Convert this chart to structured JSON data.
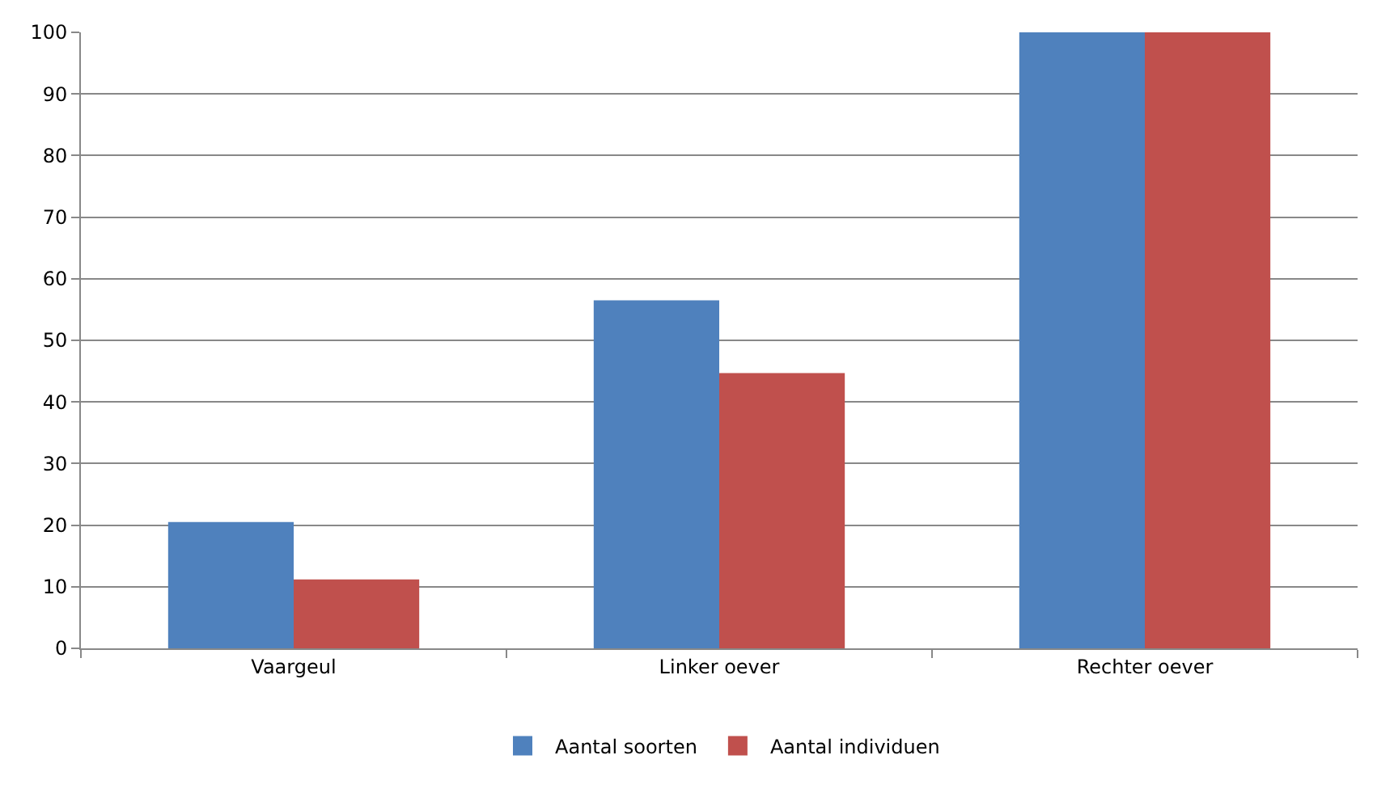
{
  "chart_data": {
    "type": "bar",
    "categories": [
      "Vaargeul",
      "Linker oever",
      "Rechter oever"
    ],
    "series": [
      {
        "name": "Aantal soorten",
        "color": "#4f81bd",
        "values": [
          20.5,
          56.5,
          100
        ]
      },
      {
        "name": "Aantal individuen",
        "color": "#c0504d",
        "values": [
          11.2,
          44.7,
          100
        ]
      }
    ],
    "ylim": [
      0,
      100
    ],
    "yticks": [
      0,
      10,
      20,
      30,
      40,
      50,
      60,
      70,
      80,
      90,
      100
    ],
    "grid": "y",
    "legend": "bottom"
  }
}
